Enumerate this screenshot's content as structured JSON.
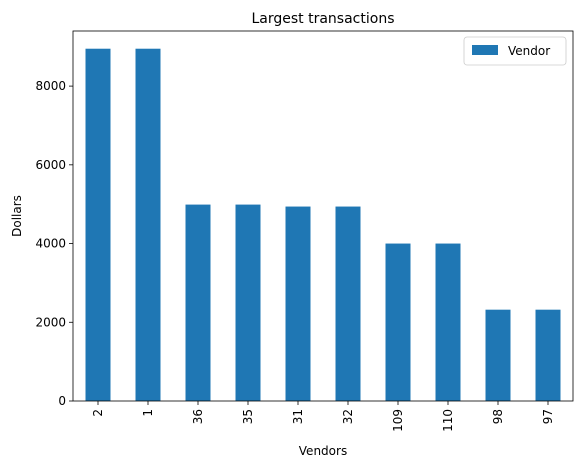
{
  "chart_data": {
    "type": "bar",
    "title": "Largest transactions",
    "xlabel": "Vendors",
    "ylabel": "Dollars",
    "categories": [
      "2",
      "1",
      "36",
      "35",
      "31",
      "32",
      "109",
      "110",
      "98",
      "97"
    ],
    "series": [
      {
        "name": "Vendor",
        "color": "#1f77b4",
        "values": [
          8950,
          8950,
          4990,
          4990,
          4940,
          4940,
          4000,
          4000,
          2320,
          2320
        ]
      }
    ],
    "ylim": [
      0,
      9400
    ],
    "yticks": [
      0,
      2000,
      4000,
      6000,
      8000
    ],
    "grid": false,
    "legend_position": "top-right"
  }
}
